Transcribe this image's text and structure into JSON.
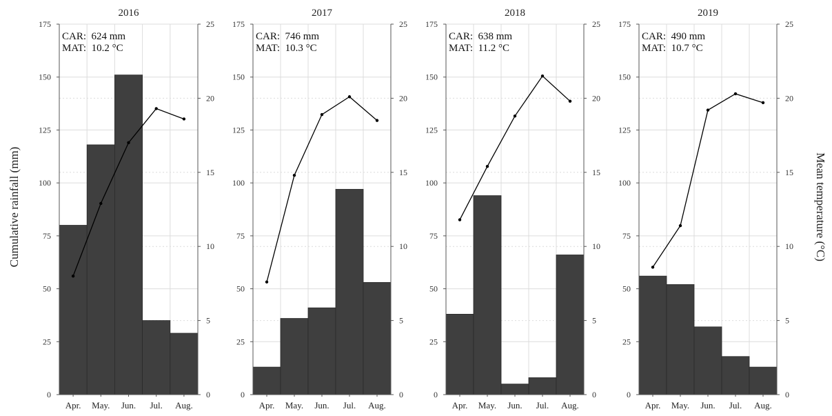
{
  "figure": {
    "ylabel_left": "Cumulative rainfall (mm)",
    "ylabel_right": "Mean temperature (°C)"
  },
  "colors": {
    "bar": "#3f3f3f",
    "line": "#000000",
    "grid": "#dcdcdc",
    "axis": "#555555"
  },
  "chart_data": [
    {
      "type": "bar",
      "title": "2016",
      "categories": [
        "Apr.",
        "May.",
        "Jun.",
        "Jul.",
        "Aug."
      ],
      "series": [
        {
          "values": [
            80,
            118,
            151,
            35,
            29
          ]
        },
        {
          "type": "line",
          "axis": "right",
          "values": [
            8.0,
            12.9,
            17.0,
            19.3,
            18.6
          ]
        }
      ],
      "annotations": [
        "CAR:  624 mm",
        "MAT:  10.2 °C"
      ],
      "ylim": [
        0,
        175
      ],
      "yticks": [
        0,
        25,
        50,
        75,
        100,
        125,
        150,
        175
      ],
      "y2lim": [
        0,
        25
      ],
      "y2ticks": [
        0,
        5,
        10,
        15,
        20,
        25
      ],
      "grid": true
    },
    {
      "type": "bar",
      "title": "2017",
      "categories": [
        "Apr.",
        "May.",
        "Jun.",
        "Jul.",
        "Aug."
      ],
      "series": [
        {
          "values": [
            13,
            36,
            41,
            97,
            53
          ]
        },
        {
          "type": "line",
          "axis": "right",
          "values": [
            7.6,
            14.8,
            18.9,
            20.1,
            18.5
          ]
        }
      ],
      "annotations": [
        "CAR:  746 mm",
        "MAT:  10.3 °C"
      ],
      "ylim": [
        0,
        175
      ],
      "yticks": [
        0,
        25,
        50,
        75,
        100,
        125,
        150,
        175
      ],
      "y2lim": [
        0,
        25
      ],
      "y2ticks": [
        0,
        5,
        10,
        15,
        20,
        25
      ],
      "grid": true
    },
    {
      "type": "bar",
      "title": "2018",
      "categories": [
        "Apr.",
        "May.",
        "Jun.",
        "Jul.",
        "Aug."
      ],
      "series": [
        {
          "values": [
            38,
            94,
            5,
            8,
            66
          ]
        },
        {
          "type": "line",
          "axis": "right",
          "values": [
            11.8,
            15.4,
            18.8,
            21.5,
            19.8
          ]
        }
      ],
      "annotations": [
        "CAR:  638 mm",
        "MAT:  11.2 °C"
      ],
      "ylim": [
        0,
        175
      ],
      "yticks": [
        0,
        25,
        50,
        75,
        100,
        125,
        150,
        175
      ],
      "y2lim": [
        0,
        25
      ],
      "y2ticks": [
        0,
        5,
        10,
        15,
        20,
        25
      ],
      "grid": true
    },
    {
      "type": "bar",
      "title": "2019",
      "categories": [
        "Apr.",
        "May.",
        "Jun.",
        "Jul.",
        "Aug."
      ],
      "series": [
        {
          "values": [
            56,
            52,
            32,
            18,
            13
          ]
        },
        {
          "type": "line",
          "axis": "right",
          "values": [
            8.6,
            11.4,
            19.2,
            20.3,
            19.7
          ]
        }
      ],
      "annotations": [
        "CAR:  490 mm",
        "MAT:  10.7 °C"
      ],
      "ylim": [
        0,
        175
      ],
      "yticks": [
        0,
        25,
        50,
        75,
        100,
        125,
        150,
        175
      ],
      "y2lim": [
        0,
        25
      ],
      "y2ticks": [
        0,
        5,
        10,
        15,
        20,
        25
      ],
      "grid": true
    }
  ]
}
